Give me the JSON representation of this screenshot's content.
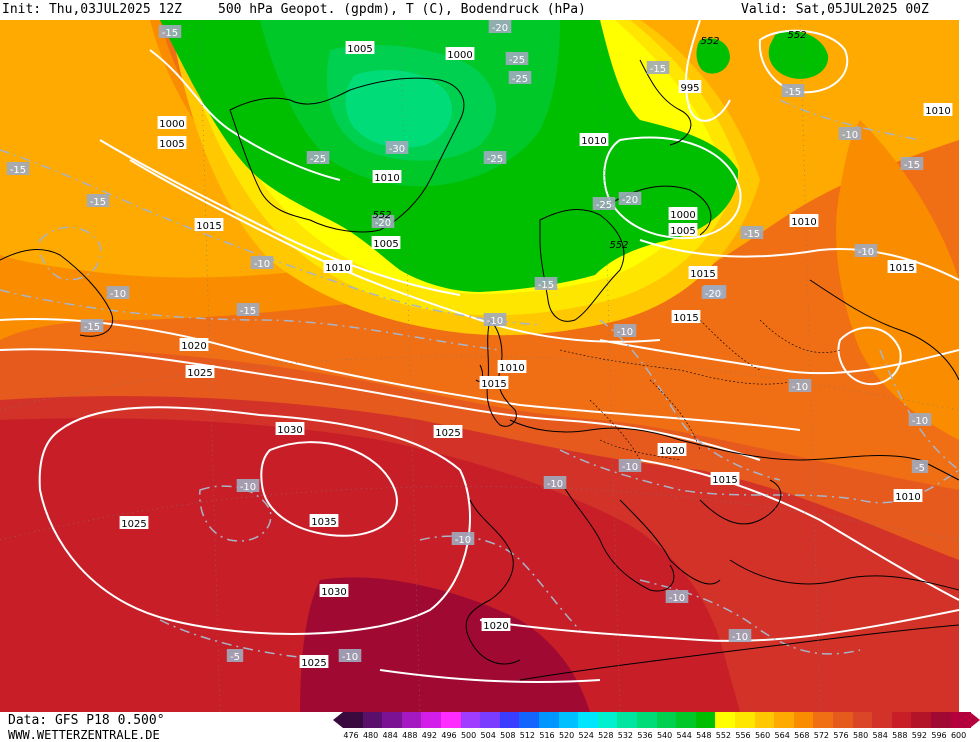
{
  "header": {
    "init": "Init: Thu,03JUL2025 12Z",
    "title": "500 hPa Geopot. (gpdm), T (C), Bodendruck (hPa)",
    "valid": "Valid: Sat,05JUL2025 00Z"
  },
  "footer": {
    "data_source": "Data: GFS P18 0.500°",
    "website": "WWW.WETTERZENTRALE.DE"
  },
  "colors": {
    "c476": "#3a0a3f",
    "c480": "#5a0f6b",
    "c484": "#7b1294",
    "c488": "#a419c0",
    "c492": "#d21ee8",
    "c496": "#ff2cff",
    "c500": "#a03cff",
    "c504": "#7a3cff",
    "c508": "#3a3cff",
    "c512": "#1464ff",
    "c516": "#0096ff",
    "c520": "#00c0ff",
    "c524": "#00e6ff",
    "c528": "#00f0d0",
    "c532": "#00e6a0",
    "c536": "#00dc78",
    "c540": "#00d050",
    "c544": "#00c828",
    "c548": "#00be00",
    "c552": "#ffff00",
    "c556": "#ffe600",
    "c560": "#ffc800",
    "c564": "#ffaa00",
    "c568": "#fa8c00",
    "c572": "#f06e14",
    "c576": "#e65a1e",
    "c580": "#dc4628",
    "c584": "#d23228",
    "c588": "#c81e28",
    "c592": "#b41428",
    "c596": "#a00a32",
    "c600": "#b4003c"
  },
  "scale_ticks": [
    "476",
    "480",
    "484",
    "488",
    "492",
    "496",
    "500",
    "504",
    "508",
    "512",
    "516",
    "520",
    "524",
    "528",
    "532",
    "536",
    "540",
    "544",
    "548",
    "552",
    "556",
    "560",
    "564",
    "568",
    "572",
    "576",
    "580",
    "584",
    "588",
    "592",
    "596",
    "600"
  ],
  "pressure_labels": [
    "1005",
    "1000",
    "1005",
    "1000",
    "1010",
    "1010",
    "1015",
    "1010",
    "1005",
    "1010",
    "1015",
    "1020",
    "1025",
    "1030",
    "1035",
    "1025",
    "1030",
    "1025",
    "1020",
    "1025",
    "1015",
    "1010",
    "1020",
    "1015",
    "1010",
    "1005",
    "1000",
    "995",
    "1010",
    "1015",
    "1015",
    "1020",
    "1020",
    "1010",
    "1010",
    "1020",
    "1015",
    "1015",
    "1010",
    "1025",
    "1020",
    "1015",
    "1015",
    "1010",
    "1015",
    "1005"
  ],
  "temp_labels": [
    "-15",
    "-25",
    "-20",
    "-25",
    "-30",
    "-25",
    "-25",
    "-20",
    "-20",
    "-15",
    "-20",
    "-25",
    "-15",
    "-15",
    "-10",
    "-15",
    "-15",
    "-10",
    "-10",
    "-15",
    "-15",
    "-10",
    "-10",
    "-15",
    "-20",
    "-15",
    "-10",
    "-10",
    "-10",
    "-10",
    "-10",
    "-10",
    "-10",
    "-10",
    "-10",
    "-5",
    "-5",
    "-10",
    "-15",
    "-10",
    "-15",
    "-10",
    "-15"
  ],
  "geopot_labels": [
    "552",
    "552",
    "552",
    "552"
  ]
}
